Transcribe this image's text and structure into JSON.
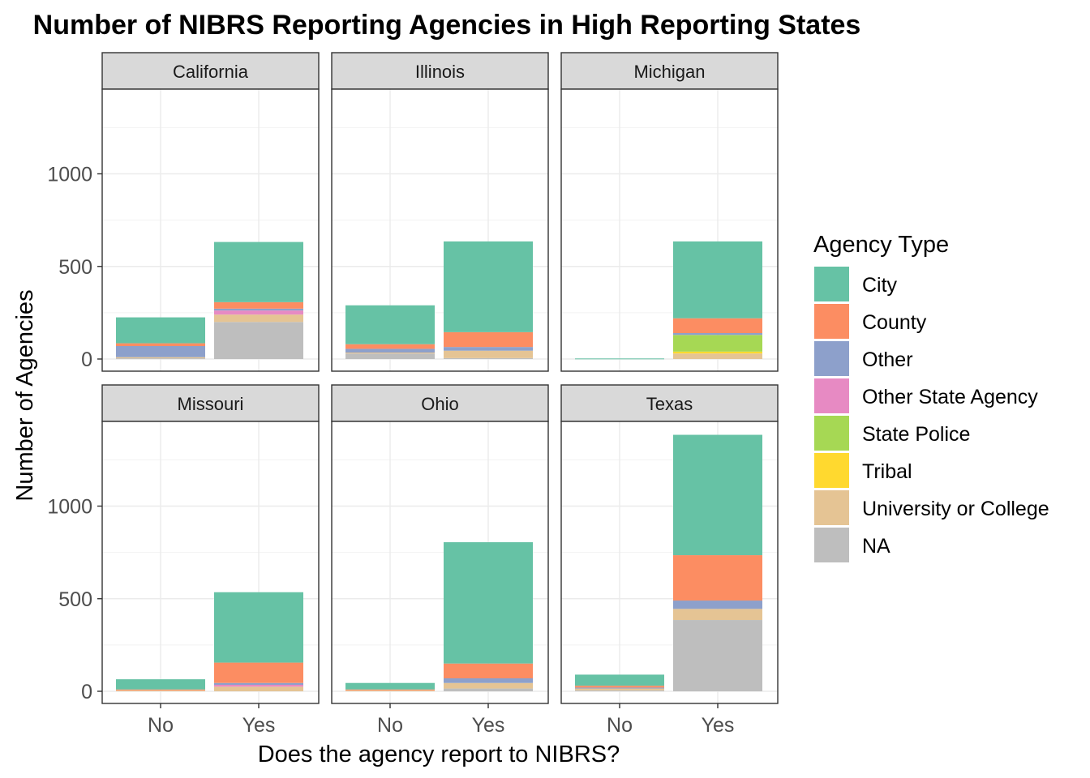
{
  "chart_data": {
    "type": "bar",
    "stacked": true,
    "faceted": true,
    "title": "Number of NIBRS Reporting Agencies in High Reporting States",
    "xlabel": "Does the agency report to NIBRS?",
    "ylabel": "Number of Agencies",
    "ylim": [
      0,
      1500
    ],
    "yticks": [
      0,
      500,
      1000
    ],
    "categories": [
      "No",
      "Yes"
    ],
    "legend": {
      "title": "Agency Type",
      "position": "right",
      "items": [
        {
          "name": "City",
          "color": "#66C2A5"
        },
        {
          "name": "County",
          "color": "#FC8D62"
        },
        {
          "name": "Other",
          "color": "#8DA0CB"
        },
        {
          "name": "Other State Agency",
          "color": "#E78AC3"
        },
        {
          "name": "State Police",
          "color": "#A6D854"
        },
        {
          "name": "Tribal",
          "color": "#FFD92F"
        },
        {
          "name": "University or College",
          "color": "#E5C494"
        },
        {
          "name": "NA",
          "color": "#BEBEBE"
        }
      ]
    },
    "grid": true,
    "facets": [
      {
        "name": "California",
        "bars": {
          "No": {
            "City": 140,
            "County": 15,
            "Other": 60,
            "Other State Agency": 0,
            "State Police": 0,
            "Tribal": 0,
            "University or College": 6,
            "NA": 4
          },
          "Yes": {
            "City": 325,
            "County": 35,
            "Other": 10,
            "Other State Agency": 22,
            "State Police": 0,
            "Tribal": 0,
            "University or College": 40,
            "NA": 200
          }
        }
      },
      {
        "name": "Illinois",
        "bars": {
          "No": {
            "City": 210,
            "County": 25,
            "Other": 20,
            "Other State Agency": 0,
            "State Police": 0,
            "Tribal": 0,
            "University or College": 5,
            "NA": 30
          },
          "Yes": {
            "City": 490,
            "County": 80,
            "Other": 20,
            "Other State Agency": 0,
            "State Police": 0,
            "Tribal": 0,
            "University or College": 40,
            "NA": 5
          }
        }
      },
      {
        "name": "Michigan",
        "bars": {
          "No": {
            "City": 3,
            "County": 0,
            "Other": 0,
            "Other State Agency": 0,
            "State Police": 0,
            "Tribal": 0,
            "University or College": 0,
            "NA": 0
          },
          "Yes": {
            "City": 415,
            "County": 80,
            "Other": 10,
            "Other State Agency": 0,
            "State Police": 90,
            "Tribal": 10,
            "University or College": 30,
            "NA": 0
          }
        }
      },
      {
        "name": "Missouri",
        "bars": {
          "No": {
            "City": 55,
            "County": 5,
            "Other": 0,
            "Other State Agency": 0,
            "State Police": 0,
            "Tribal": 0,
            "University or College": 5,
            "NA": 0
          },
          "Yes": {
            "City": 380,
            "County": 110,
            "Other": 10,
            "Other State Agency": 10,
            "State Police": 0,
            "Tribal": 0,
            "University or College": 25,
            "NA": 0
          }
        }
      },
      {
        "name": "Ohio",
        "bars": {
          "No": {
            "City": 35,
            "County": 5,
            "Other": 0,
            "Other State Agency": 0,
            "State Police": 0,
            "Tribal": 0,
            "University or College": 5,
            "NA": 0
          },
          "Yes": {
            "City": 655,
            "County": 80,
            "Other": 25,
            "Other State Agency": 0,
            "State Police": 0,
            "Tribal": 0,
            "University or College": 30,
            "NA": 15
          }
        }
      },
      {
        "name": "Texas",
        "bars": {
          "No": {
            "City": 60,
            "County": 10,
            "Other": 5,
            "Other State Agency": 0,
            "State Police": 0,
            "Tribal": 0,
            "University or College": 10,
            "NA": 5
          },
          "Yes": {
            "City": 650,
            "County": 245,
            "Other": 45,
            "Other State Agency": 0,
            "State Police": 0,
            "Tribal": 0,
            "University or College": 60,
            "NA": 385
          }
        }
      }
    ]
  }
}
